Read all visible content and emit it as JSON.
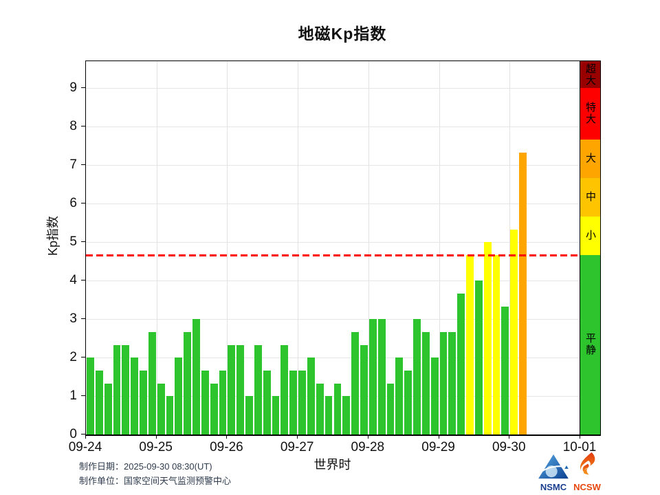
{
  "chart_data": {
    "type": "bar",
    "title": "地磁Kp指数",
    "xlabel": "世界时",
    "ylabel": "Kp指数",
    "ylim": [
      0,
      9.7
    ],
    "yticks": [
      0,
      1,
      2,
      3,
      4,
      5,
      6,
      7,
      8,
      9
    ],
    "xticklabels": [
      "09-24",
      "09-25",
      "09-26",
      "09-27",
      "09-28",
      "09-29",
      "09-30",
      "10-01"
    ],
    "bar_interval_hours": 3,
    "grid": true,
    "threshold": {
      "value": 4.67,
      "color": "#fe0000",
      "style": "dashed"
    },
    "series": [
      {
        "date": "09-24",
        "values": [
          2.0,
          1.67,
          1.33,
          2.33,
          2.33,
          2.0,
          1.67,
          2.67
        ]
      },
      {
        "date": "09-25",
        "values": [
          1.33,
          1.0,
          2.0,
          2.67,
          3.0,
          1.67,
          1.33,
          1.67
        ]
      },
      {
        "date": "09-26",
        "values": [
          2.33,
          2.33,
          1.0,
          2.33,
          1.67,
          1.0,
          2.33,
          1.67
        ]
      },
      {
        "date": "09-27",
        "values": [
          1.67,
          2.0,
          1.33,
          1.0,
          1.33,
          1.0,
          2.67,
          2.33
        ]
      },
      {
        "date": "09-28",
        "values": [
          3.0,
          3.0,
          1.33,
          2.0,
          1.67,
          3.0,
          2.67,
          2.0
        ]
      },
      {
        "date": "09-29",
        "values": [
          2.67,
          2.67,
          3.67,
          4.67,
          4.0,
          5.0,
          4.67,
          3.33
        ]
      },
      {
        "date": "09-30",
        "values": [
          5.33,
          7.33
        ]
      }
    ],
    "legend": [
      {
        "label": "超大",
        "from": 9.0,
        "to": 9.7,
        "color": "#990000"
      },
      {
        "label": "特大",
        "from": 7.67,
        "to": 9.0,
        "color": "#fe0000"
      },
      {
        "label": "大",
        "from": 6.67,
        "to": 7.67,
        "color": "#ffa500"
      },
      {
        "label": "中",
        "from": 5.67,
        "to": 6.67,
        "color": "#ffc400"
      },
      {
        "label": "小",
        "from": 4.67,
        "to": 5.67,
        "color": "#ffff00"
      },
      {
        "label": "平静",
        "from": 0,
        "to": 4.67,
        "color": "#2ec42e"
      }
    ],
    "legend_position": "right"
  },
  "footer": {
    "date_line": "制作日期：2025-09-30 08:30(UT)",
    "org_line": "制作单位：国家空间天气监测预警中心"
  },
  "logos": {
    "nsmc_label": "NSMC",
    "ncsw_label": "NCSW"
  }
}
